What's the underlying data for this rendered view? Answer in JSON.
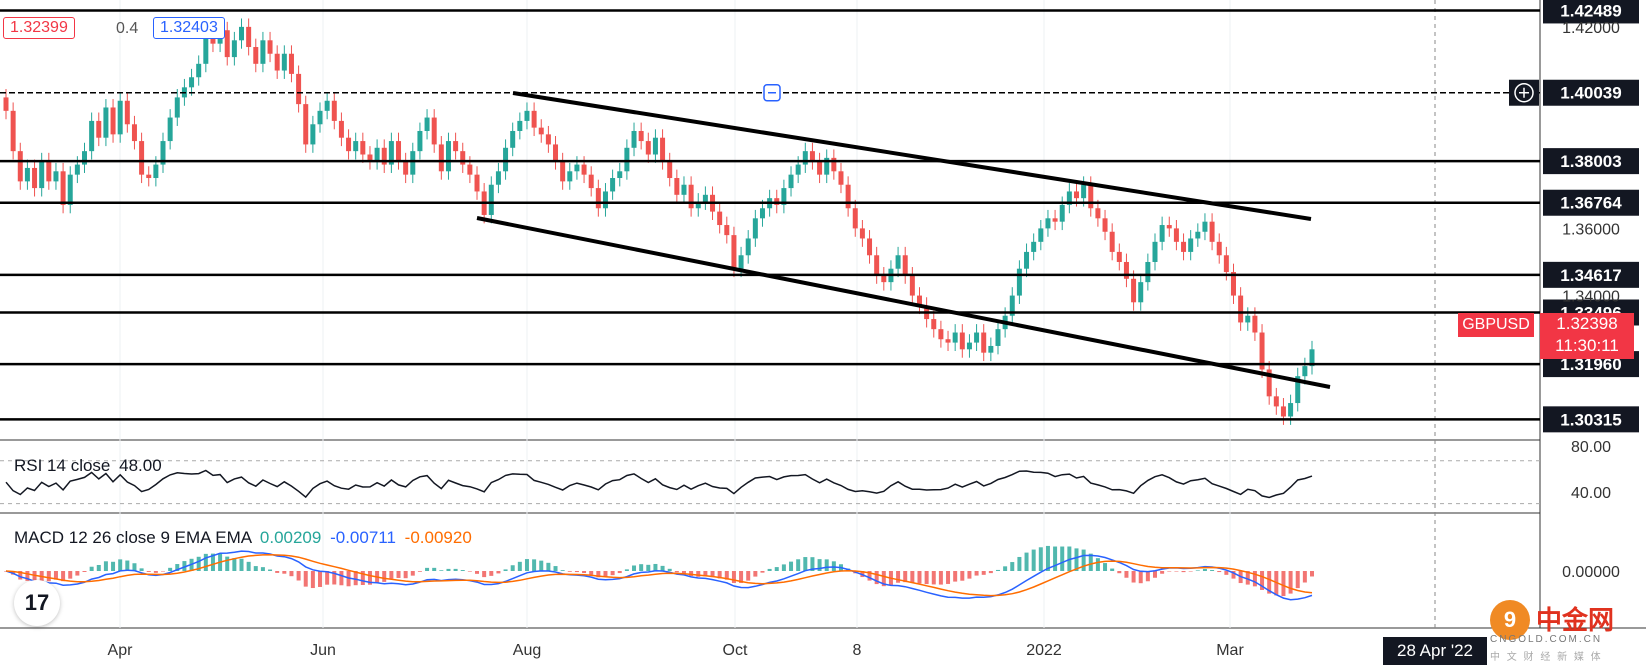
{
  "header": {
    "bid": "1.32399",
    "spread": "0.4",
    "ask": "1.32403"
  },
  "symbol": {
    "name": "GBPUSD",
    "price": "1.32398",
    "countdown": "11:30:11"
  },
  "colors": {
    "up": "#26a69a",
    "down": "#ef5350",
    "level_line": "#000000",
    "rsi": "#131722",
    "macd": "#2962ff",
    "signal": "#ff6d00",
    "hist_up": "#26a69a",
    "hist_down": "#ef5350",
    "symbol_bg": "#f23645"
  },
  "indicators": {
    "rsi": {
      "label": "RSI 14 close",
      "value": "48.00"
    },
    "macd": {
      "label": "MACD 12 26 close 9 EMA EMA",
      "hist": "0.00209",
      "macd": "-0.00711",
      "signal": "-0.00920"
    }
  },
  "time_axis": {
    "labels": [
      "Apr",
      "Jun",
      "Aug",
      "Oct",
      "8",
      "2022",
      "Mar"
    ],
    "current_date": "28 Apr '22"
  },
  "price_axis": {
    "ticks": [
      "1.42000",
      "1.36000",
      "1.34000"
    ]
  },
  "rsi_axis": {
    "ticks": [
      "80.00",
      "40.00"
    ]
  },
  "macd_axis": {
    "ticks": [
      "0.00000"
    ]
  },
  "levels": [
    "1.42489",
    "1.40039",
    "1.38003",
    "1.36764",
    "1.34617",
    "1.33496",
    "1.31960",
    "1.30315"
  ],
  "watermark": {
    "brand": "中金网",
    "site": "CNGOLD.COM.CN",
    "tagline": "中 文 财 经 新 媒 体"
  },
  "logo": {
    "mark": "17"
  },
  "chart_data": {
    "type": "candlestick",
    "symbol": "GBPUSD",
    "timeframe": "daily",
    "x_ticks": [
      "Apr",
      "Jun",
      "Aug",
      "Oct",
      "8",
      "2022",
      "Mar"
    ],
    "y_range": [
      1.297,
      1.428
    ],
    "horizontal_levels": [
      1.42489,
      1.40039,
      1.38003,
      1.36764,
      1.34617,
      1.33496,
      1.3196,
      1.30315
    ],
    "closes": [
      1.395,
      1.383,
      1.374,
      1.378,
      1.372,
      1.38,
      1.374,
      1.377,
      1.367,
      1.376,
      1.379,
      1.383,
      1.392,
      1.387,
      1.396,
      1.388,
      1.398,
      1.391,
      1.386,
      1.376,
      1.375,
      1.379,
      1.386,
      1.393,
      1.399,
      1.402,
      1.405,
      1.409,
      1.417,
      1.415,
      1.419,
      1.411,
      1.416,
      1.42,
      1.414,
      1.409,
      1.416,
      1.412,
      1.407,
      1.412,
      1.406,
      1.397,
      1.385,
      1.391,
      1.395,
      1.398,
      1.392,
      1.387,
      1.383,
      1.386,
      1.382,
      1.38,
      1.384,
      1.379,
      1.386,
      1.38,
      1.376,
      1.383,
      1.389,
      1.393,
      1.385,
      1.377,
      1.386,
      1.383,
      1.379,
      1.376,
      1.371,
      1.364,
      1.373,
      1.377,
      1.384,
      1.389,
      1.392,
      1.395,
      1.39,
      1.388,
      1.385,
      1.38,
      1.374,
      1.377,
      1.379,
      1.376,
      1.372,
      1.366,
      1.371,
      1.375,
      1.377,
      1.384,
      1.389,
      1.386,
      1.382,
      1.387,
      1.38,
      1.375,
      1.37,
      1.373,
      1.366,
      1.368,
      1.37,
      1.365,
      1.361,
      1.358,
      1.348,
      1.352,
      1.357,
      1.363,
      1.366,
      1.369,
      1.367,
      1.372,
      1.376,
      1.379,
      1.383,
      1.38,
      1.376,
      1.381,
      1.377,
      1.373,
      1.366,
      1.36,
      1.357,
      1.352,
      1.346,
      1.344,
      1.348,
      1.352,
      1.346,
      1.34,
      1.337,
      1.333,
      1.33,
      1.327,
      1.326,
      1.329,
      1.324,
      1.326,
      1.329,
      1.323,
      1.325,
      1.33,
      1.334,
      1.34,
      1.348,
      1.353,
      1.356,
      1.36,
      1.363,
      1.362,
      1.367,
      1.371,
      1.369,
      1.373,
      1.366,
      1.363,
      1.359,
      1.353,
      1.35,
      1.345,
      1.338,
      1.344,
      1.35,
      1.356,
      1.361,
      1.36,
      1.356,
      1.353,
      1.357,
      1.359,
      1.362,
      1.356,
      1.352,
      1.347,
      1.34,
      1.332,
      1.334,
      1.329,
      1.318,
      1.31,
      1.307,
      1.304,
      1.308,
      1.316,
      1.319,
      1.324
    ]
  }
}
